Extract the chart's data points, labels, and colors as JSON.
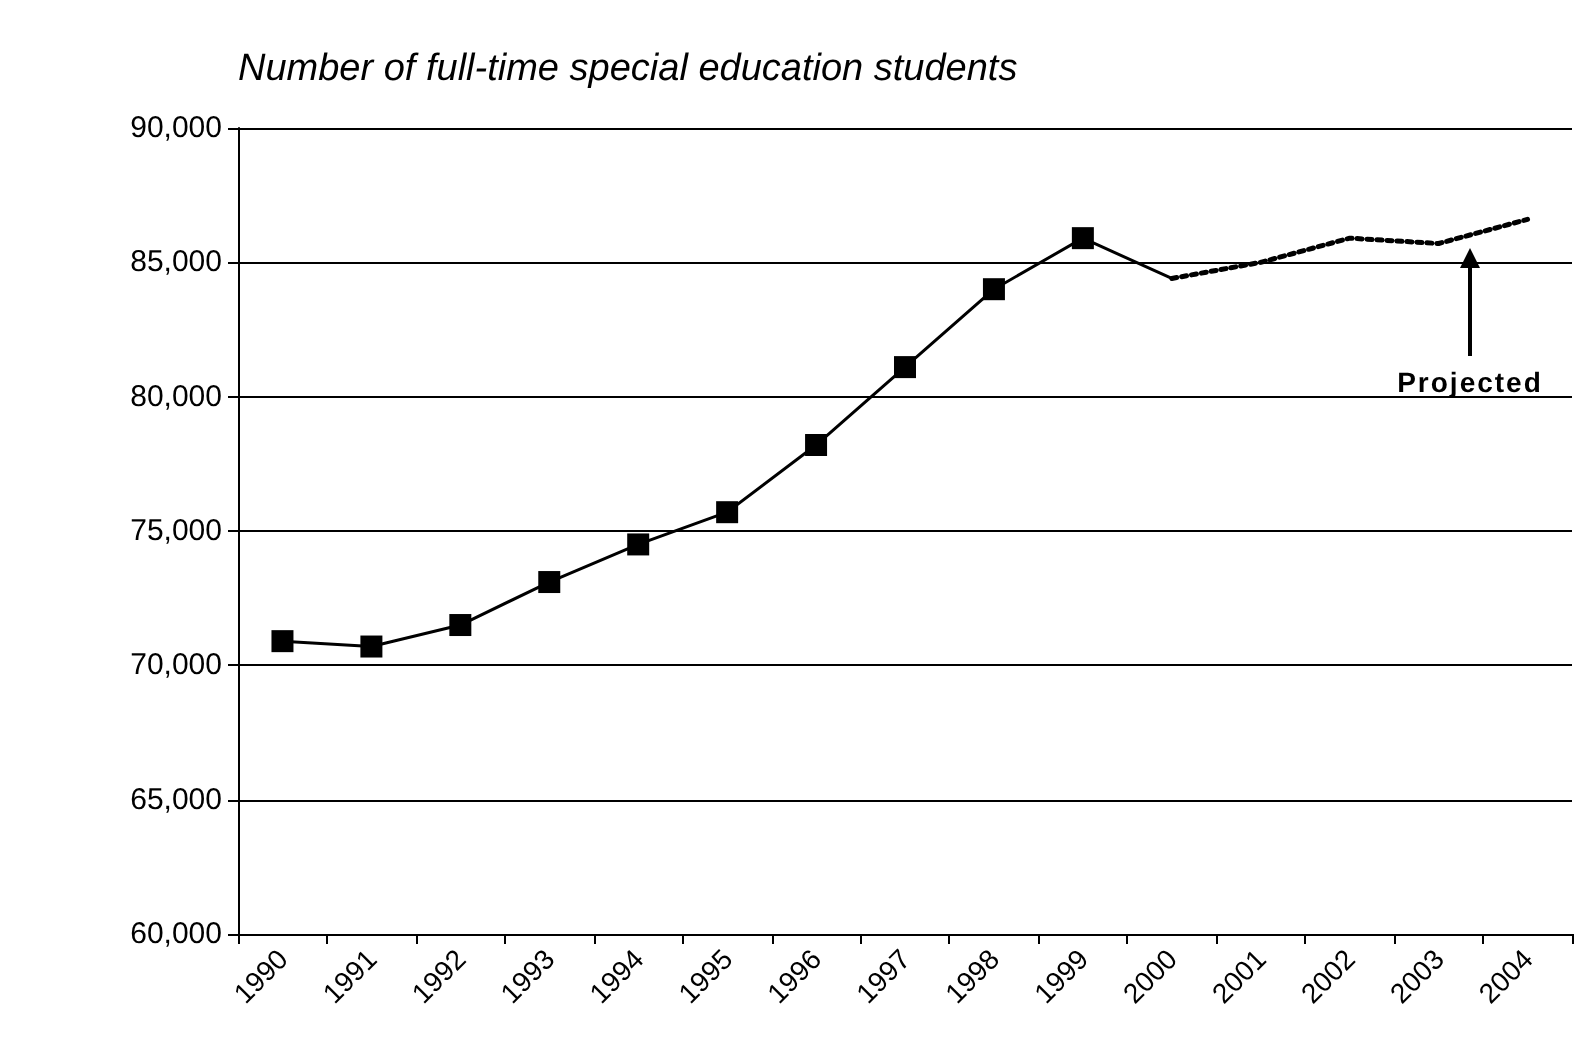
{
  "chart_data": {
    "type": "line",
    "title": "Number of full-time special education students",
    "categories": [
      "1990",
      "1991",
      "1992",
      "1993",
      "1994",
      "1995",
      "1996",
      "1997",
      "1998",
      "1999",
      "2000",
      "2001",
      "2002",
      "2003",
      "2004"
    ],
    "series": [
      {
        "color": "#000000",
        "marker": "square",
        "line_style": "solid",
        "values": [
          70900,
          70700,
          71500,
          73100,
          74500,
          75700,
          78200,
          81100,
          84000,
          85900,
          null,
          null,
          null,
          null,
          null
        ]
      },
      {
        "color": "#000000",
        "marker": "none",
        "line_style": "solid",
        "values": [
          null,
          null,
          null,
          null,
          null,
          null,
          null,
          null,
          null,
          85900,
          84400,
          null,
          null,
          null,
          null
        ]
      },
      {
        "color": "#000000",
        "marker": "none",
        "line_style": "dotted",
        "values": [
          null,
          null,
          null,
          null,
          null,
          null,
          null,
          null,
          null,
          null,
          84400,
          85000,
          85900,
          85700,
          86600
        ]
      }
    ],
    "ylim": [
      60000,
      90000
    ],
    "yticks": [
      {
        "value": 60000,
        "label": "60,000"
      },
      {
        "value": 65000,
        "label": "65,000"
      },
      {
        "value": 70000,
        "label": "70,000"
      },
      {
        "value": 75000,
        "label": "75,000"
      },
      {
        "value": 80000,
        "label": "80,000"
      },
      {
        "value": 85000,
        "label": "85,000"
      },
      {
        "value": 90000,
        "label": "90,000"
      }
    ],
    "grid": "y",
    "annotations": [
      "Projected"
    ]
  }
}
